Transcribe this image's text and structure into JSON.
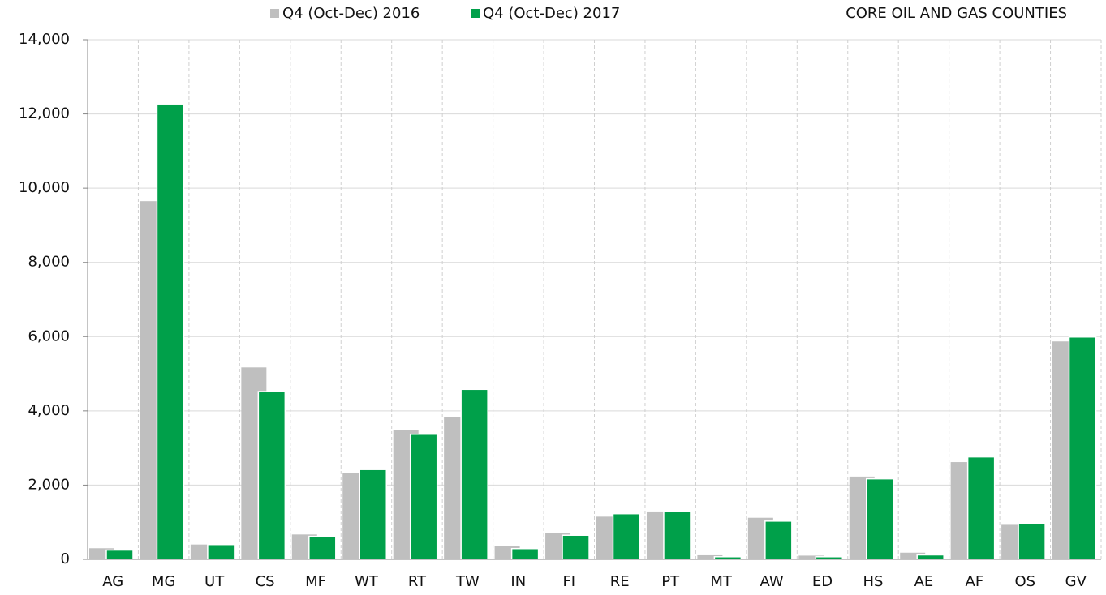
{
  "chart_data": {
    "type": "bar",
    "title": "CORE OIL AND GAS COUNTIES",
    "categories": [
      "AG",
      "MG",
      "UT",
      "CS",
      "MF",
      "WT",
      "RT",
      "TW",
      "IN",
      "FI",
      "RE",
      "PT",
      "MT",
      "AW",
      "ED",
      "HS",
      "AE",
      "AF",
      "OS",
      "GV"
    ],
    "series": [
      {
        "name": "Q4 (Oct-Dec) 2016",
        "color": "#bfbfbf",
        "values": [
          300,
          9650,
          400,
          5170,
          670,
          2320,
          3490,
          3830,
          350,
          710,
          1150,
          1290,
          110,
          1120,
          100,
          2230,
          180,
          2620,
          930,
          5870
        ]
      },
      {
        "name": "Q4 (Oct-Dec) 2017",
        "color": "#00a04a",
        "values": [
          250,
          12270,
          400,
          4520,
          620,
          2420,
          3370,
          4580,
          290,
          650,
          1230,
          1300,
          70,
          1030,
          70,
          2170,
          120,
          2760,
          960,
          5990
        ]
      }
    ],
    "ylim": [
      0,
      14000
    ],
    "yticks": [
      0,
      {
        "value": 2000,
        "label": "2,000"
      },
      {
        "value": 4000,
        "label": "4,000"
      },
      {
        "value": 6000,
        "label": "6,000"
      },
      {
        "value": 8000,
        "label": "8,000"
      },
      {
        "value": 10000,
        "label": "10,000"
      },
      {
        "value": 12000,
        "label": "12,000"
      },
      {
        "value": 14000,
        "label": "14,000"
      }
    ],
    "grid": true
  }
}
